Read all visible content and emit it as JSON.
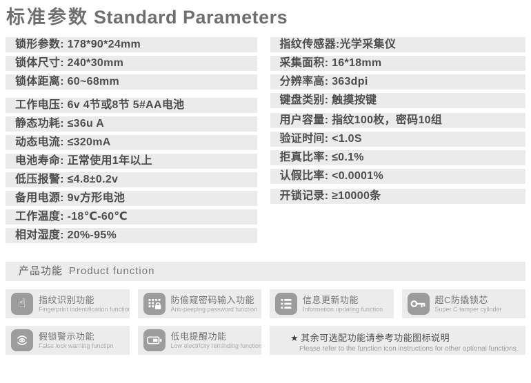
{
  "colors": {
    "row_bg": "#ebebeb",
    "panel_bg": "#ececec",
    "icon_bg": "#9c9c9c",
    "param_text": "#4d4d4f",
    "title_text": "#6f6f6f"
  },
  "standard_parameters": {
    "heading_zh": "标准参数",
    "heading_en": "Standard Parameters",
    "left_groups": [
      [
        "锁形参数: 178*90*24mm",
        "锁体尺寸: 240*30mm",
        "锁体距离: 60~68mm"
      ],
      [
        "工作电压: 6v 4节或8节 5#AA电池",
        "静态功耗: ≤36u A",
        "动态电流: ≤320mA",
        "电池寿命: 正常使用1年以上",
        "低压报警: ≤4.8±0.2v",
        "备用电源: 9v方形电池",
        "工作温度: -18℃-60℃",
        "相对湿度: 20%-95%"
      ]
    ],
    "right_groups": [
      [
        "指纹传感器:光学采集仪",
        "采集面积: 16*18mm",
        "分辨率高: 363dpi",
        "键盘类别: 触摸按键"
      ],
      [
        "用户容量: 指纹100枚，密码10组",
        "验证时间: <1.0S",
        "拒真比率: ≤0.1%",
        "认假比率: <0.0001%"
      ],
      [
        "开锁记录: ≥10000条"
      ]
    ]
  },
  "product_function": {
    "heading_zh": "产品功能",
    "heading_en": "Product function",
    "features": [
      {
        "icon": "fingerprint-hand-icon",
        "zh": "指纹识别功能",
        "en": "Fingerprint indentification function"
      },
      {
        "icon": "keypad-lock-icon",
        "zh": "防偷窥密码输入功能",
        "en": "Anti-peeping password function"
      },
      {
        "icon": "info-list-icon",
        "zh": "信息更新功能",
        "en": "Information updating function"
      },
      {
        "icon": "key-icon",
        "zh": "超C防撬锁芯",
        "en": "Super C tamper cylinder"
      },
      {
        "icon": "false-lock-alarm-icon",
        "zh": "假锁警示功能",
        "en": "False lock warning functipn"
      },
      {
        "icon": "battery-icon",
        "zh": "低电提醒功能",
        "en": "Low electricity reminding function"
      }
    ],
    "note": {
      "star": "★",
      "zh": "其余可选配功能请参考功能图标说明",
      "en": "Please refer to the function icon instructions for other optional functions."
    }
  }
}
